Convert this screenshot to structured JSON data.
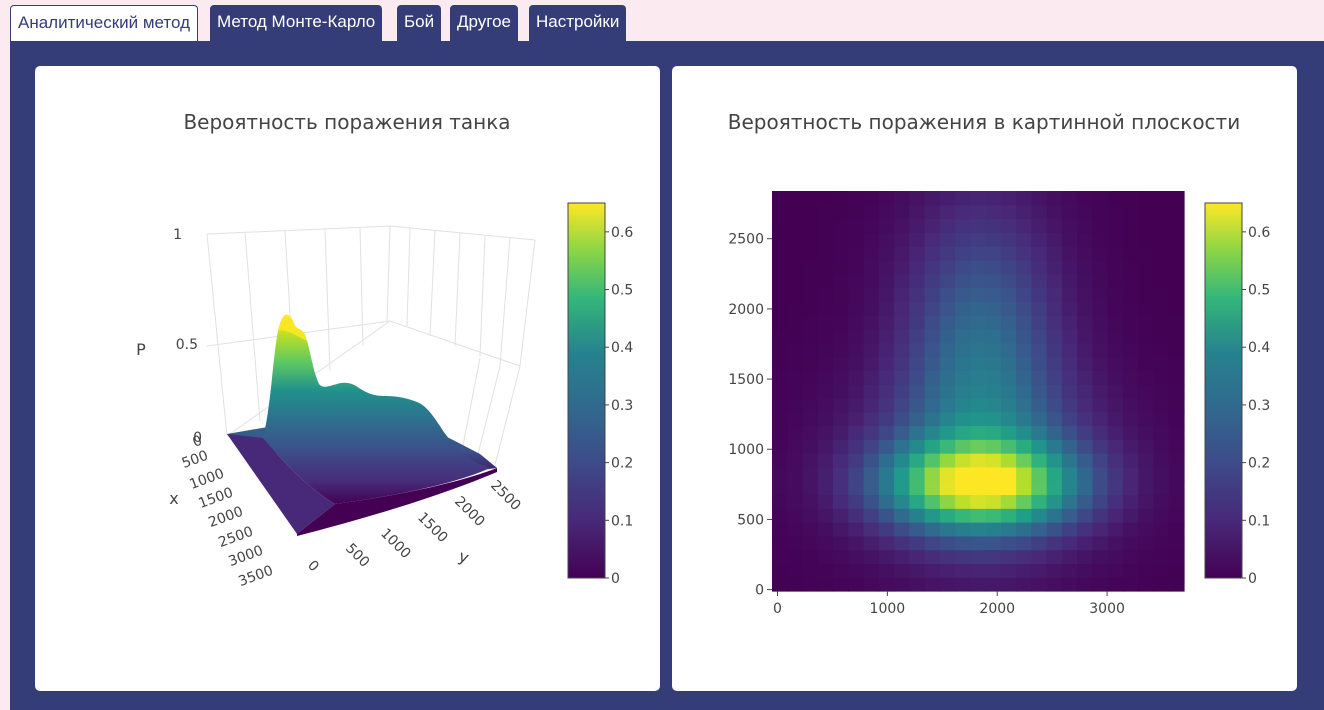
{
  "tabs": [
    {
      "label": "Аналитический метод",
      "active": true
    },
    {
      "label": "Метод Монте-Карло",
      "active": false
    },
    {
      "label": "Бой",
      "active": false
    },
    {
      "label": "Другое",
      "active": false
    },
    {
      "label": "Настройки",
      "active": false
    }
  ],
  "colors": {
    "nav": "#343d78",
    "page_bg": "#fbeaf0",
    "colorscale": "viridis"
  },
  "chart_data": [
    {
      "type": "surface",
      "title": "Вероятность поражения танка",
      "axes": {
        "x": {
          "label": "x",
          "ticks": [
            "0",
            "500",
            "1000",
            "1500",
            "2000",
            "2500",
            "3000",
            "3500"
          ]
        },
        "y": {
          "label": "y",
          "ticks": [
            "0",
            "500",
            "1000",
            "1500",
            "2000",
            "2500"
          ]
        },
        "z": {
          "label": "P",
          "ticks": [
            "0",
            "0.5",
            "1"
          ],
          "range": [
            0,
            1
          ]
        }
      },
      "colorbar": {
        "range": [
          0,
          0.65
        ],
        "ticks": [
          "0",
          "0.1",
          "0.2",
          "0.3",
          "0.4",
          "0.5",
          "0.6"
        ]
      },
      "peak_value": 0.64
    },
    {
      "type": "heatmap",
      "title": "Вероятность поражения в картинной плоскости",
      "xlabel": "",
      "ylabel": "",
      "x_ticks": [
        "0",
        "1000",
        "2000",
        "3000"
      ],
      "y_ticks": [
        "0",
        "500",
        "1000",
        "1500",
        "2000",
        "2500"
      ],
      "xlim": [
        -50,
        3700
      ],
      "ylim": [
        -10,
        2840
      ],
      "colorbar": {
        "range": [
          0,
          0.65
        ],
        "ticks": [
          "0",
          "0.1",
          "0.2",
          "0.3",
          "0.4",
          "0.5",
          "0.6"
        ]
      },
      "components": [
        {
          "x_center": 1850,
          "y_center": 750,
          "x_sigma": 600,
          "y_sigma": 210,
          "amplitude": 0.48
        },
        {
          "x_center": 1850,
          "y_center": 900,
          "x_sigma": 750,
          "y_sigma": 460,
          "amplitude": 0.16
        },
        {
          "x_center": 1850,
          "y_center": 1700,
          "x_sigma": 480,
          "y_sigma": 700,
          "amplitude": 0.22
        }
      ],
      "max_value": 0.64
    }
  ]
}
